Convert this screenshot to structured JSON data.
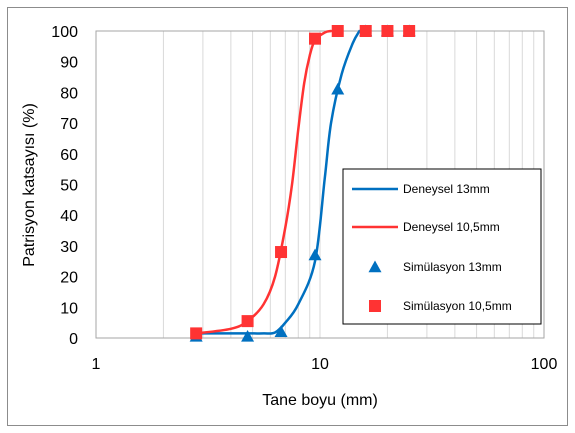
{
  "chart_data": {
    "type": "scatter",
    "title": "",
    "xlabel": "Tane boyu (mm)",
    "ylabel": "Patrisyon katsayısı (%)",
    "x_scale": "log",
    "xlim": [
      1,
      100
    ],
    "ylim": [
      0,
      100
    ],
    "x_ticks": [
      "1",
      "10",
      "100"
    ],
    "y_ticks": [
      "0",
      "10",
      "20",
      "30",
      "40",
      "50",
      "60",
      "70",
      "80",
      "90",
      "100"
    ],
    "grid": "vertical",
    "legend_position": "right",
    "series": [
      {
        "name": "Deneysel 13mm",
        "kind": "line",
        "color": "#0070C0",
        "x": [
          2.8,
          4.75,
          5.6,
          6.3,
          7.0,
          8.0,
          9.5,
          10.5,
          11.2,
          12.5,
          14.0,
          15.0
        ],
        "y": [
          1.5,
          1.5,
          1.5,
          1.8,
          5,
          11,
          25,
          52,
          70,
          86,
          96,
          100
        ]
      },
      {
        "name": "Deneysel 10,5mm",
        "kind": "line",
        "color": "#FF3333",
        "x": [
          2.8,
          4.0,
          4.75,
          5.6,
          6.3,
          7.0,
          7.5,
          8.0,
          8.5,
          9.0,
          9.5,
          10.5,
          11.2
        ],
        "y": [
          1.5,
          3,
          5.5,
          11,
          20,
          36,
          50,
          68,
          83,
          92,
          97,
          99.5,
          100
        ]
      },
      {
        "name": "Simülasyon 13mm",
        "kind": "marker",
        "marker": "triangle",
        "color": "#0070C0",
        "x": [
          2.8,
          4.75,
          6.7,
          9.5,
          12.0,
          16.0,
          20.0,
          25.0
        ],
        "y": [
          0.5,
          0.5,
          2,
          27,
          81,
          100,
          100,
          100
        ]
      },
      {
        "name": "Simülasyon 10,5mm",
        "kind": "marker",
        "marker": "square",
        "color": "#FF3333",
        "x": [
          2.8,
          4.75,
          6.7,
          9.5,
          12.0,
          16.0,
          20.0,
          25.0
        ],
        "y": [
          1.5,
          5.5,
          28,
          97.5,
          100,
          100,
          100,
          100
        ]
      }
    ]
  }
}
